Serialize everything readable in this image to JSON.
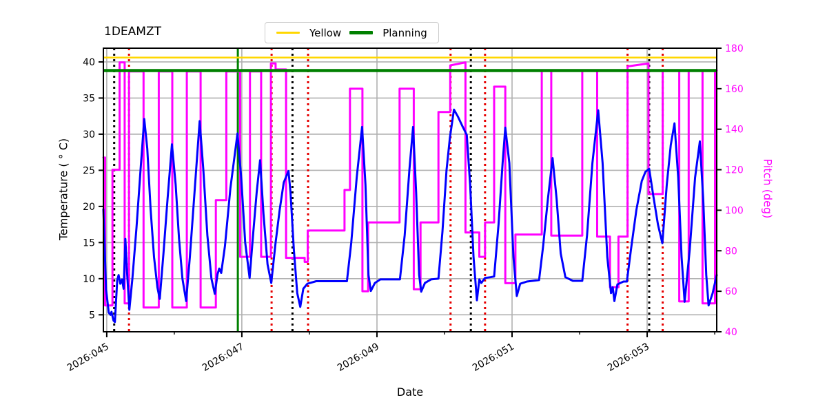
{
  "title": "1DEAMZT",
  "legend": {
    "entries": [
      {
        "label": "Yellow",
        "color": "#ffd700"
      },
      {
        "label": "Planning",
        "color": "#008000"
      }
    ]
  },
  "axes": {
    "xlabel": "Date",
    "ylabel_left": "Temperature ( ° C)",
    "ylabel_right": "Pitch (deg)"
  },
  "chart_data": {
    "type": "line",
    "title": "1DEAMZT",
    "xlabel": "Date",
    "ylabel": "Temperature ( ° C)",
    "y2label": "Pitch (deg)",
    "grid": true,
    "legend_position": "top-center",
    "x_range_days": [
      44.95,
      54.03
    ],
    "x_tick_days": [
      45,
      47,
      49,
      51,
      53
    ],
    "x_tick_labels": [
      "2026:045",
      "2026:047",
      "2026:049",
      "2026:051",
      "2026:053"
    ],
    "x_minor_tick_days": [
      46,
      48,
      50,
      52,
      54
    ],
    "ylim_left": [
      2.65,
      41.9
    ],
    "yticks_left": [
      5,
      10,
      15,
      20,
      25,
      30,
      35,
      40
    ],
    "ylim_right": [
      40,
      180
    ],
    "yticks_right": [
      40,
      60,
      80,
      100,
      120,
      140,
      160,
      180
    ],
    "limit_lines": [
      {
        "name": "Yellow",
        "value": 40.6,
        "axis": "left",
        "color": "#ffd700",
        "width": 2.5
      },
      {
        "name": "Planning",
        "value": 38.8,
        "axis": "left",
        "color": "#008000",
        "width": 4.5
      }
    ],
    "event_lines": {
      "black_dotted_days": [
        45.11,
        47.75,
        50.39,
        53.03
      ],
      "red_dotted_days": [
        45.33,
        47.44,
        47.98,
        50.09,
        50.6,
        52.71,
        53.23
      ],
      "green_solid_days": [
        46.94
      ]
    },
    "colors": {
      "temperature": "#0000ff",
      "pitch": "#ff00ff",
      "grid": "#b0b0b0",
      "frame": "#000000",
      "red_event": "#e60000",
      "black_event": "#000000"
    },
    "series": [
      {
        "name": "1DEAMZT temperature",
        "axis": "left",
        "color": "#0000ff",
        "points": [
          [
            44.95,
            19.6
          ],
          [
            44.99,
            8.5
          ],
          [
            45.03,
            5.3
          ],
          [
            45.055,
            5.0
          ],
          [
            45.07,
            5.4
          ],
          [
            45.1,
            4.2
          ],
          [
            45.12,
            4.0
          ],
          [
            45.155,
            9.8
          ],
          [
            45.175,
            10.5
          ],
          [
            45.2,
            9.3
          ],
          [
            45.225,
            9.9
          ],
          [
            45.25,
            8.6
          ],
          [
            45.275,
            15.5
          ],
          [
            45.3,
            11.0
          ],
          [
            45.335,
            5.7
          ],
          [
            45.38,
            10.0
          ],
          [
            45.44,
            17.0
          ],
          [
            45.5,
            25.0
          ],
          [
            45.555,
            32.1
          ],
          [
            45.6,
            28.0
          ],
          [
            45.65,
            19.5
          ],
          [
            45.7,
            13.0
          ],
          [
            45.75,
            8.8
          ],
          [
            45.785,
            7.2
          ],
          [
            45.84,
            13.5
          ],
          [
            45.9,
            21.0
          ],
          [
            45.965,
            28.6
          ],
          [
            46.02,
            23.0
          ],
          [
            46.07,
            15.5
          ],
          [
            46.12,
            10.0
          ],
          [
            46.175,
            6.9
          ],
          [
            46.23,
            13.0
          ],
          [
            46.3,
            22.0
          ],
          [
            46.375,
            31.8
          ],
          [
            46.43,
            25.0
          ],
          [
            46.49,
            16.0
          ],
          [
            46.55,
            10.0
          ],
          [
            46.6,
            7.9
          ],
          [
            46.64,
            10.6
          ],
          [
            46.665,
            11.4
          ],
          [
            46.695,
            10.8
          ],
          [
            46.75,
            14.5
          ],
          [
            46.83,
            22.5
          ],
          [
            46.935,
            30.1
          ],
          [
            46.99,
            24.0
          ],
          [
            47.05,
            15.0
          ],
          [
            47.115,
            10.1
          ],
          [
            47.17,
            16.5
          ],
          [
            47.22,
            22.0
          ],
          [
            47.27,
            26.4
          ],
          [
            47.32,
            19.0
          ],
          [
            47.38,
            12.0
          ],
          [
            47.435,
            9.4
          ],
          [
            47.5,
            15.0
          ],
          [
            47.56,
            19.5
          ],
          [
            47.62,
            23.3
          ],
          [
            47.69,
            24.9
          ],
          [
            47.72,
            22.0
          ],
          [
            47.77,
            14.0
          ],
          [
            47.82,
            8.0
          ],
          [
            47.865,
            6.1
          ],
          [
            47.91,
            8.6
          ],
          [
            47.97,
            9.3
          ],
          [
            48.1,
            9.65
          ],
          [
            48.3,
            9.65
          ],
          [
            48.555,
            9.65
          ],
          [
            48.62,
            15.0
          ],
          [
            48.7,
            24.0
          ],
          [
            48.78,
            31.0
          ],
          [
            48.83,
            23.0
          ],
          [
            48.875,
            10.5
          ],
          [
            48.91,
            8.3
          ],
          [
            48.97,
            9.4
          ],
          [
            49.05,
            9.9
          ],
          [
            49.2,
            9.9
          ],
          [
            49.34,
            9.9
          ],
          [
            49.41,
            16.0
          ],
          [
            49.48,
            25.0
          ],
          [
            49.535,
            31.0
          ],
          [
            49.58,
            22.0
          ],
          [
            49.625,
            10.5
          ],
          [
            49.655,
            8.2
          ],
          [
            49.71,
            9.4
          ],
          [
            49.8,
            9.9
          ],
          [
            49.91,
            10.0
          ],
          [
            49.97,
            16.5
          ],
          [
            50.03,
            25.0
          ],
          [
            50.08,
            29.5
          ],
          [
            50.14,
            33.4
          ],
          [
            50.2,
            32.4
          ],
          [
            50.26,
            31.2
          ],
          [
            50.33,
            29.9
          ],
          [
            50.38,
            23.0
          ],
          [
            50.43,
            13.0
          ],
          [
            50.48,
            7.0
          ],
          [
            50.515,
            9.9
          ],
          [
            50.545,
            9.4
          ],
          [
            50.6,
            10.1
          ],
          [
            50.68,
            10.2
          ],
          [
            50.735,
            10.3
          ],
          [
            50.8,
            17.5
          ],
          [
            50.86,
            26.0
          ],
          [
            50.9,
            30.9
          ],
          [
            50.96,
            26.0
          ],
          [
            51.02,
            13.0
          ],
          [
            51.07,
            7.6
          ],
          [
            51.12,
            9.3
          ],
          [
            51.22,
            9.6
          ],
          [
            51.4,
            9.8
          ],
          [
            51.46,
            14.5
          ],
          [
            51.53,
            21.0
          ],
          [
            51.6,
            26.7
          ],
          [
            51.66,
            21.0
          ],
          [
            51.72,
            13.5
          ],
          [
            51.79,
            10.2
          ],
          [
            51.9,
            9.7
          ],
          [
            52.04,
            9.7
          ],
          [
            52.11,
            16.0
          ],
          [
            52.19,
            26.0
          ],
          [
            52.275,
            33.3
          ],
          [
            52.34,
            26.0
          ],
          [
            52.41,
            13.0
          ],
          [
            52.465,
            8.0
          ],
          [
            52.49,
            8.8
          ],
          [
            52.515,
            6.9
          ],
          [
            52.56,
            9.2
          ],
          [
            52.65,
            9.6
          ],
          [
            52.7,
            9.6
          ],
          [
            52.76,
            14.0
          ],
          [
            52.84,
            19.5
          ],
          [
            52.92,
            23.5
          ],
          [
            52.975,
            24.8
          ],
          [
            53.03,
            25.2
          ],
          [
            53.09,
            21.5
          ],
          [
            53.16,
            17.5
          ],
          [
            53.225,
            14.9
          ],
          [
            53.29,
            23.0
          ],
          [
            53.35,
            28.5
          ],
          [
            53.405,
            31.5
          ],
          [
            53.46,
            24.0
          ],
          [
            53.51,
            13.0
          ],
          [
            53.555,
            6.8
          ],
          [
            53.63,
            14.0
          ],
          [
            53.71,
            24.0
          ],
          [
            53.78,
            29.0
          ],
          [
            53.83,
            21.0
          ],
          [
            53.875,
            10.5
          ],
          [
            53.91,
            6.3
          ],
          [
            53.97,
            8.0
          ],
          [
            54.03,
            10.5
          ]
        ]
      },
      {
        "name": "Pitch",
        "axis": "right",
        "color": "#ff00ff",
        "points": [
          [
            44.95,
            126
          ],
          [
            44.975,
            126
          ],
          [
            44.975,
            53
          ],
          [
            45.085,
            53
          ],
          [
            45.085,
            120
          ],
          [
            45.19,
            120
          ],
          [
            45.19,
            173
          ],
          [
            45.265,
            173
          ],
          [
            45.265,
            54
          ],
          [
            45.33,
            54
          ],
          [
            45.33,
            168.5
          ],
          [
            45.545,
            168.5
          ],
          [
            45.545,
            52
          ],
          [
            45.77,
            52
          ],
          [
            45.77,
            168.5
          ],
          [
            45.97,
            168.5
          ],
          [
            45.97,
            52
          ],
          [
            46.185,
            52
          ],
          [
            46.185,
            168.5
          ],
          [
            46.39,
            168.5
          ],
          [
            46.39,
            52
          ],
          [
            46.615,
            52
          ],
          [
            46.615,
            105
          ],
          [
            46.77,
            105
          ],
          [
            46.77,
            168.5
          ],
          [
            46.975,
            168.5
          ],
          [
            46.975,
            77
          ],
          [
            47.12,
            77
          ],
          [
            47.12,
            168.5
          ],
          [
            47.285,
            168.5
          ],
          [
            47.285,
            77
          ],
          [
            47.43,
            77
          ],
          [
            47.43,
            172.5
          ],
          [
            47.5,
            172.5
          ],
          [
            47.5,
            169.5
          ],
          [
            47.655,
            169.5
          ],
          [
            47.655,
            76.5
          ],
          [
            47.93,
            76.5
          ],
          [
            47.93,
            74.5
          ],
          [
            47.975,
            74.5
          ],
          [
            47.975,
            90
          ],
          [
            48.52,
            90
          ],
          [
            48.52,
            110
          ],
          [
            48.6,
            110
          ],
          [
            48.6,
            160
          ],
          [
            48.785,
            160
          ],
          [
            48.785,
            60
          ],
          [
            48.87,
            60
          ],
          [
            48.87,
            94
          ],
          [
            49.335,
            94
          ],
          [
            49.335,
            160
          ],
          [
            49.545,
            160
          ],
          [
            49.545,
            61
          ],
          [
            49.645,
            61
          ],
          [
            49.645,
            94
          ],
          [
            49.91,
            94
          ],
          [
            49.91,
            148.5
          ],
          [
            50.085,
            148.5
          ],
          [
            50.085,
            171.5
          ],
          [
            50.31,
            173
          ],
          [
            50.31,
            89
          ],
          [
            50.515,
            89
          ],
          [
            50.515,
            77
          ],
          [
            50.6,
            77
          ],
          [
            50.6,
            94
          ],
          [
            50.735,
            94
          ],
          [
            50.735,
            161
          ],
          [
            50.9,
            161
          ],
          [
            50.9,
            64
          ],
          [
            51.05,
            64
          ],
          [
            51.05,
            88
          ],
          [
            51.44,
            88
          ],
          [
            51.44,
            169
          ],
          [
            51.58,
            169
          ],
          [
            51.58,
            87.5
          ],
          [
            52.04,
            87.5
          ],
          [
            52.04,
            169
          ],
          [
            52.26,
            169
          ],
          [
            52.26,
            87
          ],
          [
            52.45,
            87
          ],
          [
            52.45,
            62
          ],
          [
            52.575,
            62
          ],
          [
            52.575,
            87
          ],
          [
            52.71,
            87
          ],
          [
            52.71,
            171
          ],
          [
            53.02,
            172.5
          ],
          [
            53.02,
            108
          ],
          [
            53.23,
            108
          ],
          [
            53.23,
            169
          ],
          [
            53.475,
            169
          ],
          [
            53.475,
            55
          ],
          [
            53.615,
            55
          ],
          [
            53.615,
            169
          ],
          [
            53.82,
            169
          ],
          [
            53.82,
            54
          ],
          [
            54.005,
            54
          ],
          [
            54.005,
            169
          ],
          [
            54.03,
            169
          ]
        ]
      }
    ]
  }
}
